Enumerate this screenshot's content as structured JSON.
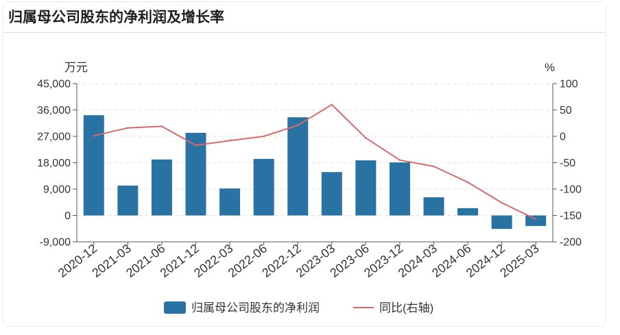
{
  "chart_data": {
    "type": "bar",
    "title": "归属母公司股东的净利润及增长率",
    "categories": [
      "2020-12",
      "2021-03",
      "2021-06",
      "2021-12",
      "2022-03",
      "2022-06",
      "2022-12",
      "2023-03",
      "2023-06",
      "2023-12",
      "2024-03",
      "2024-06",
      "2024-12",
      "2025-03"
    ],
    "y_left": {
      "label": "万元",
      "ylim": [
        -9000,
        45000
      ],
      "ticks": [
        45000,
        36000,
        27000,
        18000,
        9000,
        0,
        -9000
      ],
      "tick_labels": [
        "45,000",
        "36,000",
        "27,000",
        "18,000",
        "9,000",
        "0",
        "-9,000"
      ]
    },
    "y_right": {
      "label": "%",
      "ylim": [
        -200,
        100
      ],
      "ticks": [
        100,
        50,
        0,
        -50,
        -100,
        -150,
        -200
      ],
      "tick_labels": [
        "100",
        "50",
        "0",
        "-50",
        "-100",
        "-150",
        "-200"
      ]
    },
    "series": [
      {
        "name": "归属母公司股东的净利润",
        "type": "bar",
        "axis": "left",
        "color": "#2873a3",
        "values": [
          34200,
          10200,
          19100,
          28200,
          9200,
          19300,
          33500,
          14800,
          18800,
          18100,
          6200,
          2500,
          -4600,
          -3600
        ]
      },
      {
        "name": "同比(右轴)",
        "type": "line",
        "axis": "right",
        "color": "#d9686b",
        "values": [
          1,
          16,
          19,
          -17,
          -8,
          0,
          21,
          60,
          -3,
          -45,
          -57,
          -87,
          -126,
          -157
        ]
      }
    ],
    "grid": true,
    "legend": "bottom"
  }
}
